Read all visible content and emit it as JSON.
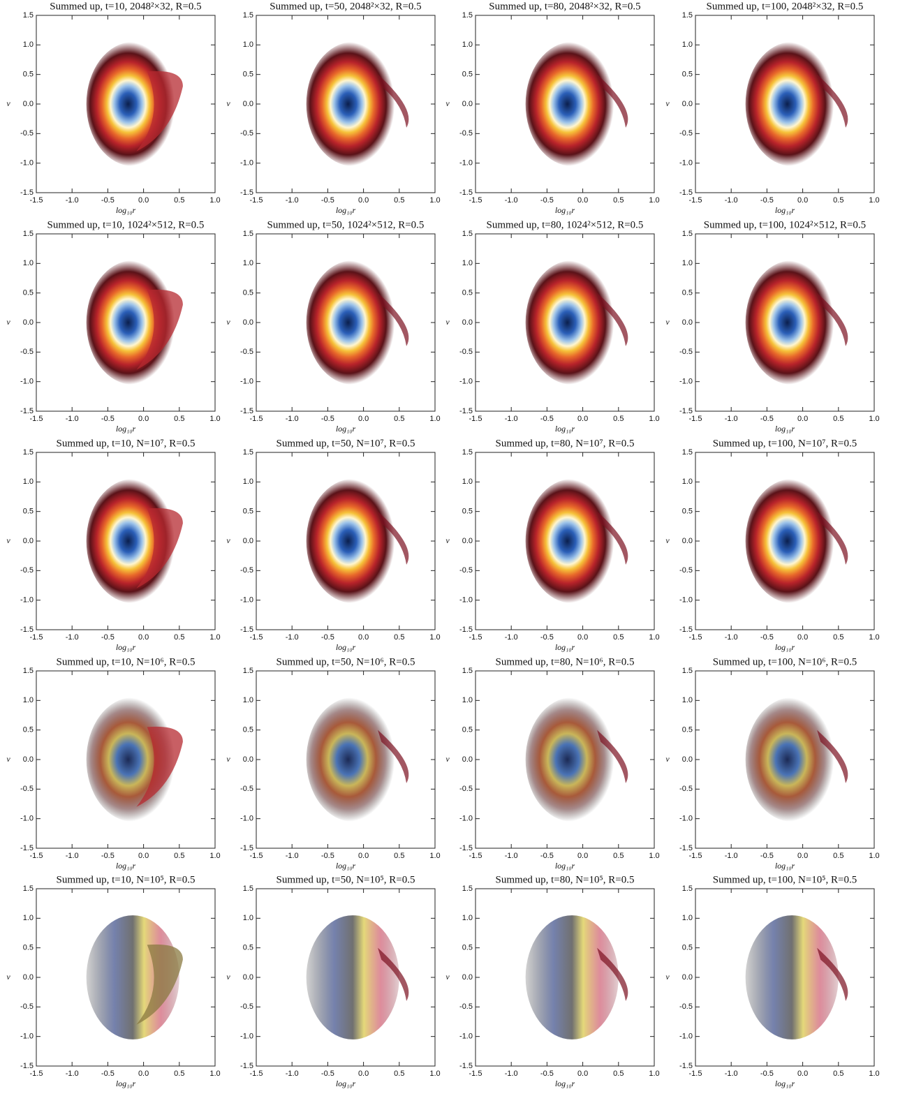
{
  "chart_data": [
    {
      "type": "density",
      "title": "Summed up, t=10, 2048²×32, R=0.5",
      "xlabel": "log₁₀r",
      "ylabel": "v",
      "xlim": [
        -1.5,
        1.0
      ],
      "ylim": [
        -1.5,
        1.5
      ],
      "xticks": [
        -1.5,
        {
          "value": -1,
          "label": "-1.0"
        },
        -0.5,
        {
          "value": 0,
          "label": "0.0"
        },
        0.5,
        {
          "value": 1,
          "label": "1.0"
        }
      ],
      "yticks": [
        -1.5,
        {
          "value": -1,
          "label": "-1.0"
        },
        -0.5,
        {
          "value": 0,
          "label": "0.0"
        },
        0.5,
        {
          "value": 1,
          "label": "1.0"
        },
        1.5
      ]
    },
    {
      "type": "density",
      "title": "Summed up, t=50, 2048²×32, R=0.5",
      "xlabel": "log₁₀r",
      "ylabel": "v",
      "xlim": [
        -1.5,
        1.0
      ],
      "ylim": [
        -1.5,
        1.5
      ],
      "xticks": [
        -1.5,
        {
          "value": -1,
          "label": "-1.0"
        },
        -0.5,
        {
          "value": 0,
          "label": "0.0"
        },
        0.5,
        {
          "value": 1,
          "label": "1.0"
        }
      ],
      "yticks": [
        -1.5,
        {
          "value": -1,
          "label": "-1.0"
        },
        -0.5,
        {
          "value": 0,
          "label": "0.0"
        },
        0.5,
        {
          "value": 1,
          "label": "1.0"
        },
        1.5
      ]
    },
    {
      "type": "density",
      "title": "Summed up, t=80, 2048²×32, R=0.5",
      "xlabel": "log₁₀r",
      "ylabel": "v",
      "xlim": [
        -1.5,
        1.0
      ],
      "ylim": [
        -1.5,
        1.5
      ],
      "xticks": [
        -1.5,
        {
          "value": -1,
          "label": "-1.0"
        },
        -0.5,
        {
          "value": 0,
          "label": "0.0"
        },
        0.5,
        {
          "value": 1,
          "label": "1.0"
        }
      ],
      "yticks": [
        -1.5,
        {
          "value": -1,
          "label": "-1.0"
        },
        -0.5,
        {
          "value": 0,
          "label": "0.0"
        },
        0.5,
        {
          "value": 1,
          "label": "1.0"
        },
        1.5
      ]
    },
    {
      "type": "density",
      "title": "Summed up, t=100, 2048²×32, R=0.5",
      "xlabel": "log₁₀r",
      "ylabel": "v",
      "xlim": [
        -1.5,
        1.0
      ],
      "ylim": [
        -1.5,
        1.5
      ],
      "xticks": [
        -1.5,
        {
          "value": -1,
          "label": "-1.0"
        },
        -0.5,
        {
          "value": 0,
          "label": "0.0"
        },
        0.5,
        {
          "value": 1,
          "label": "1.0"
        }
      ],
      "yticks": [
        -1.5,
        {
          "value": -1,
          "label": "-1.0"
        },
        -0.5,
        {
          "value": 0,
          "label": "0.0"
        },
        0.5,
        {
          "value": 1,
          "label": "1.0"
        },
        1.5
      ]
    },
    {
      "type": "density",
      "title": "Summed up, t=10, 1024²×512, R=0.5",
      "xlabel": "log₁₀r",
      "ylabel": "v",
      "xlim": [
        -1.5,
        1.0
      ],
      "ylim": [
        -1.5,
        1.5
      ],
      "xticks": [
        -1.5,
        {
          "value": -1,
          "label": "-1.0"
        },
        -0.5,
        {
          "value": 0,
          "label": "0.0"
        },
        0.5,
        {
          "value": 1,
          "label": "1.0"
        }
      ],
      "yticks": [
        -1.5,
        {
          "value": -1,
          "label": "-1.0"
        },
        -0.5,
        {
          "value": 0,
          "label": "0.0"
        },
        0.5,
        {
          "value": 1,
          "label": "1.0"
        },
        1.5
      ]
    },
    {
      "type": "density",
      "title": "Summed up, t=50, 1024²×512, R=0.5",
      "xlabel": "log₁₀r",
      "ylabel": "v",
      "xlim": [
        -1.5,
        1.0
      ],
      "ylim": [
        -1.5,
        1.5
      ],
      "xticks": [
        -1.5,
        {
          "value": -1,
          "label": "-1.0"
        },
        -0.5,
        {
          "value": 0,
          "label": "0.0"
        },
        0.5,
        {
          "value": 1,
          "label": "1.0"
        }
      ],
      "yticks": [
        -1.5,
        {
          "value": -1,
          "label": "-1.0"
        },
        -0.5,
        {
          "value": 0,
          "label": "0.0"
        },
        0.5,
        {
          "value": 1,
          "label": "1.0"
        },
        1.5
      ]
    },
    {
      "type": "density",
      "title": "Summed up, t=80, 1024²×512, R=0.5",
      "xlabel": "log₁₀r",
      "ylabel": "v",
      "xlim": [
        -1.5,
        1.0
      ],
      "ylim": [
        -1.5,
        1.5
      ],
      "xticks": [
        -1.5,
        {
          "value": -1,
          "label": "-1.0"
        },
        -0.5,
        {
          "value": 0,
          "label": "0.0"
        },
        0.5,
        {
          "value": 1,
          "label": "1.0"
        }
      ],
      "yticks": [
        -1.5,
        {
          "value": -1,
          "label": "-1.0"
        },
        -0.5,
        {
          "value": 0,
          "label": "0.0"
        },
        0.5,
        {
          "value": 1,
          "label": "1.0"
        },
        1.5
      ]
    },
    {
      "type": "density",
      "title": "Summed up, t=100, 1024²×512, R=0.5",
      "xlabel": "log₁₀r",
      "ylabel": "v",
      "xlim": [
        -1.5,
        1.0
      ],
      "ylim": [
        -1.5,
        1.5
      ],
      "xticks": [
        -1.5,
        {
          "value": -1,
          "label": "-1.0"
        },
        -0.5,
        {
          "value": 0,
          "label": "0.0"
        },
        0.5,
        {
          "value": 1,
          "label": "1.0"
        }
      ],
      "yticks": [
        -1.5,
        {
          "value": -1,
          "label": "-1.0"
        },
        -0.5,
        {
          "value": 0,
          "label": "0.0"
        },
        0.5,
        {
          "value": 1,
          "label": "1.0"
        },
        1.5
      ]
    },
    {
      "type": "density",
      "title": "Summed up, t=10, N=10⁷, R=0.5",
      "xlabel": "log₁₀r",
      "ylabel": "v",
      "xlim": [
        -1.5,
        1.0
      ],
      "ylim": [
        -1.5,
        1.5
      ],
      "xticks": [
        -1.5,
        {
          "value": -1,
          "label": "-1.0"
        },
        -0.5,
        {
          "value": 0,
          "label": "0.0"
        },
        0.5,
        {
          "value": 1,
          "label": "1.0"
        }
      ],
      "yticks": [
        -1.5,
        {
          "value": -1,
          "label": "-1.0"
        },
        -0.5,
        {
          "value": 0,
          "label": "0.0"
        },
        0.5,
        {
          "value": 1,
          "label": "1.0"
        },
        1.5
      ]
    },
    {
      "type": "density",
      "title": "Summed up, t=50, N=10⁷, R=0.5",
      "xlabel": "log₁₀r",
      "ylabel": "v",
      "xlim": [
        -1.5,
        1.0
      ],
      "ylim": [
        -1.5,
        1.5
      ],
      "xticks": [
        -1.5,
        {
          "value": -1,
          "label": "-1.0"
        },
        -0.5,
        {
          "value": 0,
          "label": "0.0"
        },
        0.5,
        {
          "value": 1,
          "label": "1.0"
        }
      ],
      "yticks": [
        -1.5,
        {
          "value": -1,
          "label": "-1.0"
        },
        -0.5,
        {
          "value": 0,
          "label": "0.0"
        },
        0.5,
        {
          "value": 1,
          "label": "1.0"
        },
        1.5
      ]
    },
    {
      "type": "density",
      "title": "Summed up, t=80, N=10⁷, R=0.5",
      "xlabel": "log₁₀r",
      "ylabel": "v",
      "xlim": [
        -1.5,
        1.0
      ],
      "ylim": [
        -1.5,
        1.5
      ],
      "xticks": [
        -1.5,
        {
          "value": -1,
          "label": "-1.0"
        },
        -0.5,
        {
          "value": 0,
          "label": "0.0"
        },
        0.5,
        {
          "value": 1,
          "label": "1.0"
        }
      ],
      "yticks": [
        -1.5,
        {
          "value": -1,
          "label": "-1.0"
        },
        -0.5,
        {
          "value": 0,
          "label": "0.0"
        },
        0.5,
        {
          "value": 1,
          "label": "1.0"
        },
        1.5
      ]
    },
    {
      "type": "density",
      "title": "Summed up, t=100, N=10⁷, R=0.5",
      "xlabel": "log₁₀r",
      "ylabel": "v",
      "xlim": [
        -1.5,
        1.0
      ],
      "ylim": [
        -1.5,
        1.5
      ],
      "xticks": [
        -1.5,
        {
          "value": -1,
          "label": "-1.0"
        },
        -0.5,
        {
          "value": 0,
          "label": "0.0"
        },
        0.5,
        {
          "value": 1,
          "label": "1.0"
        }
      ],
      "yticks": [
        -1.5,
        {
          "value": -1,
          "label": "-1.0"
        },
        -0.5,
        {
          "value": 0,
          "label": "0.0"
        },
        0.5,
        {
          "value": 1,
          "label": "1.0"
        },
        1.5
      ]
    },
    {
      "type": "density",
      "title": "Summed up, t=10, N=10⁶, R=0.5",
      "xlabel": "log₁₀r",
      "ylabel": "v",
      "xlim": [
        -1.5,
        1.0
      ],
      "ylim": [
        -1.5,
        1.5
      ],
      "xticks": [
        -1.5,
        {
          "value": -1,
          "label": "-1.0"
        },
        -0.5,
        {
          "value": 0,
          "label": "0.0"
        },
        0.5,
        {
          "value": 1,
          "label": "1.0"
        }
      ],
      "yticks": [
        -1.5,
        {
          "value": -1,
          "label": "-1.0"
        },
        -0.5,
        {
          "value": 0,
          "label": "0.0"
        },
        0.5,
        {
          "value": 1,
          "label": "1.0"
        },
        1.5
      ]
    },
    {
      "type": "density",
      "title": "Summed up, t=50, N=10⁶, R=0.5",
      "xlabel": "log₁₀r",
      "ylabel": "v",
      "xlim": [
        -1.5,
        1.0
      ],
      "ylim": [
        -1.5,
        1.5
      ],
      "xticks": [
        -1.5,
        {
          "value": -1,
          "label": "-1.0"
        },
        -0.5,
        {
          "value": 0,
          "label": "0.0"
        },
        0.5,
        {
          "value": 1,
          "label": "1.0"
        }
      ],
      "yticks": [
        -1.5,
        {
          "value": -1,
          "label": "-1.0"
        },
        -0.5,
        {
          "value": 0,
          "label": "0.0"
        },
        0.5,
        {
          "value": 1,
          "label": "1.0"
        },
        1.5
      ]
    },
    {
      "type": "density",
      "title": "Summed up, t=80, N=10⁶, R=0.5",
      "xlabel": "log₁₀r",
      "ylabel": "v",
      "xlim": [
        -1.5,
        1.0
      ],
      "ylim": [
        -1.5,
        1.5
      ],
      "xticks": [
        -1.5,
        {
          "value": -1,
          "label": "-1.0"
        },
        -0.5,
        {
          "value": 0,
          "label": "0.0"
        },
        0.5,
        {
          "value": 1,
          "label": "1.0"
        }
      ],
      "yticks": [
        -1.5,
        {
          "value": -1,
          "label": "-1.0"
        },
        -0.5,
        {
          "value": 0,
          "label": "0.0"
        },
        0.5,
        {
          "value": 1,
          "label": "1.0"
        },
        1.5
      ]
    },
    {
      "type": "density",
      "title": "Summed up, t=100, N=10⁶, R=0.5",
      "xlabel": "log₁₀r",
      "ylabel": "v",
      "xlim": [
        -1.5,
        1.0
      ],
      "ylim": [
        -1.5,
        1.5
      ],
      "xticks": [
        -1.5,
        {
          "value": -1,
          "label": "-1.0"
        },
        -0.5,
        {
          "value": 0,
          "label": "0.0"
        },
        0.5,
        {
          "value": 1,
          "label": "1.0"
        }
      ],
      "yticks": [
        -1.5,
        {
          "value": -1,
          "label": "-1.0"
        },
        -0.5,
        {
          "value": 0,
          "label": "0.0"
        },
        0.5,
        {
          "value": 1,
          "label": "1.0"
        },
        1.5
      ]
    },
    {
      "type": "density",
      "title": "Summed up, t=10, N=10⁵, R=0.5",
      "xlabel": "log₁₀r",
      "ylabel": "v",
      "xlim": [
        -1.5,
        1.0
      ],
      "ylim": [
        -1.5,
        1.5
      ],
      "xticks": [
        -1.5,
        {
          "value": -1,
          "label": "-1.0"
        },
        -0.5,
        {
          "value": 0,
          "label": "0.0"
        },
        0.5,
        {
          "value": 1,
          "label": "1.0"
        }
      ],
      "yticks": [
        -1.5,
        {
          "value": -1,
          "label": "-1.0"
        },
        -0.5,
        {
          "value": 0,
          "label": "0.0"
        },
        0.5,
        {
          "value": 1,
          "label": "1.0"
        },
        1.5
      ]
    },
    {
      "type": "density",
      "title": "Summed up, t=50, N=10⁵, R=0.5",
      "xlabel": "log₁₀r",
      "ylabel": "v",
      "xlim": [
        -1.5,
        1.0
      ],
      "ylim": [
        -1.5,
        1.5
      ],
      "xticks": [
        -1.5,
        {
          "value": -1,
          "label": "-1.0"
        },
        -0.5,
        {
          "value": 0,
          "label": "0.0"
        },
        0.5,
        {
          "value": 1,
          "label": "1.0"
        }
      ],
      "yticks": [
        -1.5,
        {
          "value": -1,
          "label": "-1.0"
        },
        -0.5,
        {
          "value": 0,
          "label": "0.0"
        },
        0.5,
        {
          "value": 1,
          "label": "1.0"
        },
        1.5
      ]
    },
    {
      "type": "density",
      "title": "Summed up, t=80, N=10⁵, R=0.5",
      "xlabel": "log₁₀r",
      "ylabel": "v",
      "xlim": [
        -1.5,
        1.0
      ],
      "ylim": [
        -1.5,
        1.5
      ],
      "xticks": [
        -1.5,
        {
          "value": -1,
          "label": "-1.0"
        },
        -0.5,
        {
          "value": 0,
          "label": "0.0"
        },
        0.5,
        {
          "value": 1,
          "label": "1.0"
        }
      ],
      "yticks": [
        -1.5,
        {
          "value": -1,
          "label": "-1.0"
        },
        -0.5,
        {
          "value": 0,
          "label": "0.0"
        },
        0.5,
        {
          "value": 1,
          "label": "1.0"
        },
        1.5
      ]
    },
    {
      "type": "density",
      "title": "Summed up, t=100, N=10⁵, R=0.5",
      "xlabel": "log₁₀r",
      "ylabel": "v",
      "xlim": [
        -1.5,
        1.0
      ],
      "ylim": [
        -1.5,
        1.5
      ],
      "xticks": [
        -1.5,
        {
          "value": -1,
          "label": "-1.0"
        },
        -0.5,
        {
          "value": 0,
          "label": "0.0"
        },
        0.5,
        {
          "value": 1,
          "label": "1.0"
        }
      ],
      "yticks": [
        -1.5,
        {
          "value": -1,
          "label": "-1.0"
        },
        -0.5,
        {
          "value": 0,
          "label": "0.0"
        },
        0.5,
        {
          "value": 1,
          "label": "1.0"
        },
        1.5
      ]
    }
  ]
}
